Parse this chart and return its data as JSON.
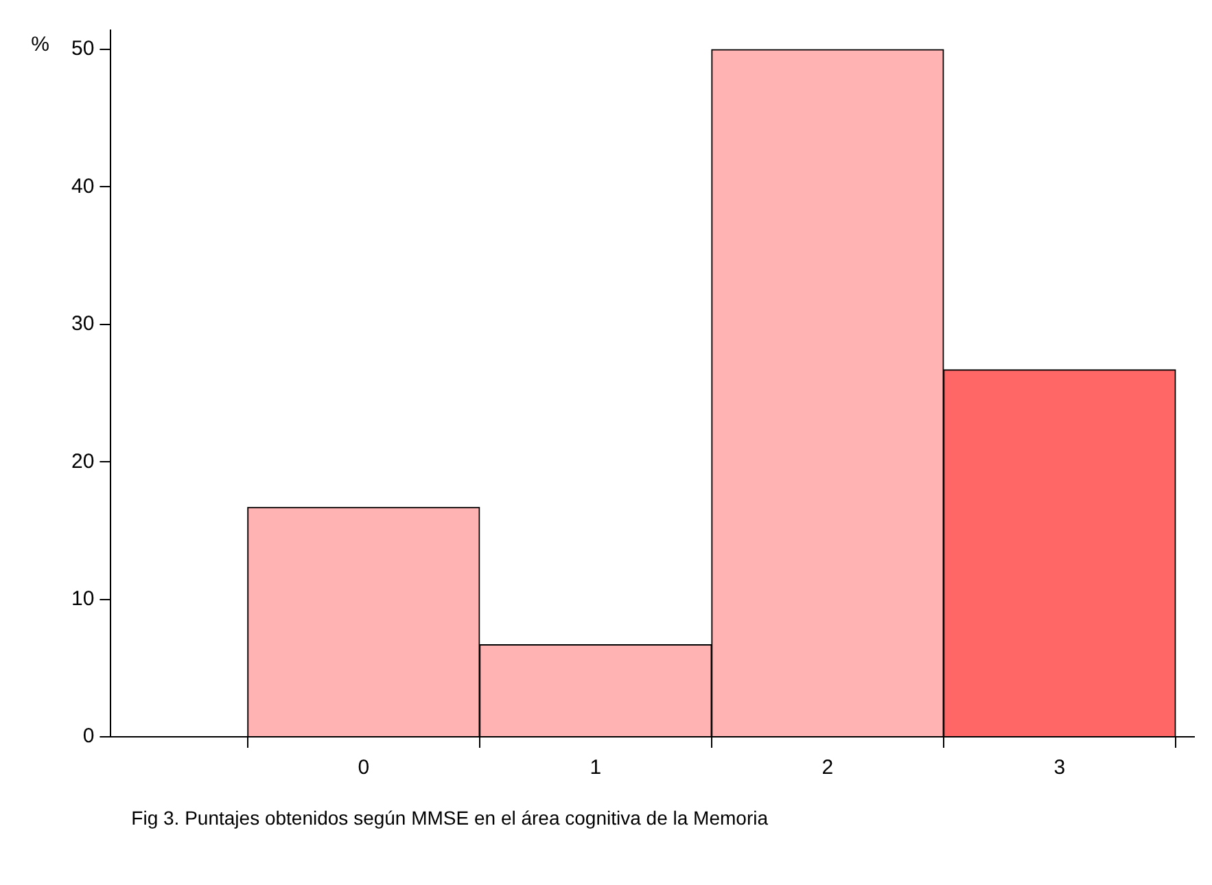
{
  "chart_data": {
    "type": "histogram",
    "ylabel": "%",
    "annotations": [
      "Fig 3. Puntajes obtenidos según MMSE en el área cognitiva de la Memoria"
    ],
    "bins": [
      -0.5,
      0.5,
      1.5,
      2.5,
      3.5
    ],
    "values": [
      16.7,
      6.7,
      50,
      26.7
    ],
    "colors": [
      "#ffb3b3",
      "#ffb3b3",
      "#ffb3b3",
      "#ff6666"
    ],
    "xlim": [
      -1.09,
      3.58
    ],
    "xticks": [
      0,
      1,
      2,
      3
    ],
    "ylim": [
      0,
      51.4
    ],
    "yticks": [
      0,
      10,
      20,
      30,
      40,
      50
    ],
    "grid": false,
    "legend": false
  }
}
